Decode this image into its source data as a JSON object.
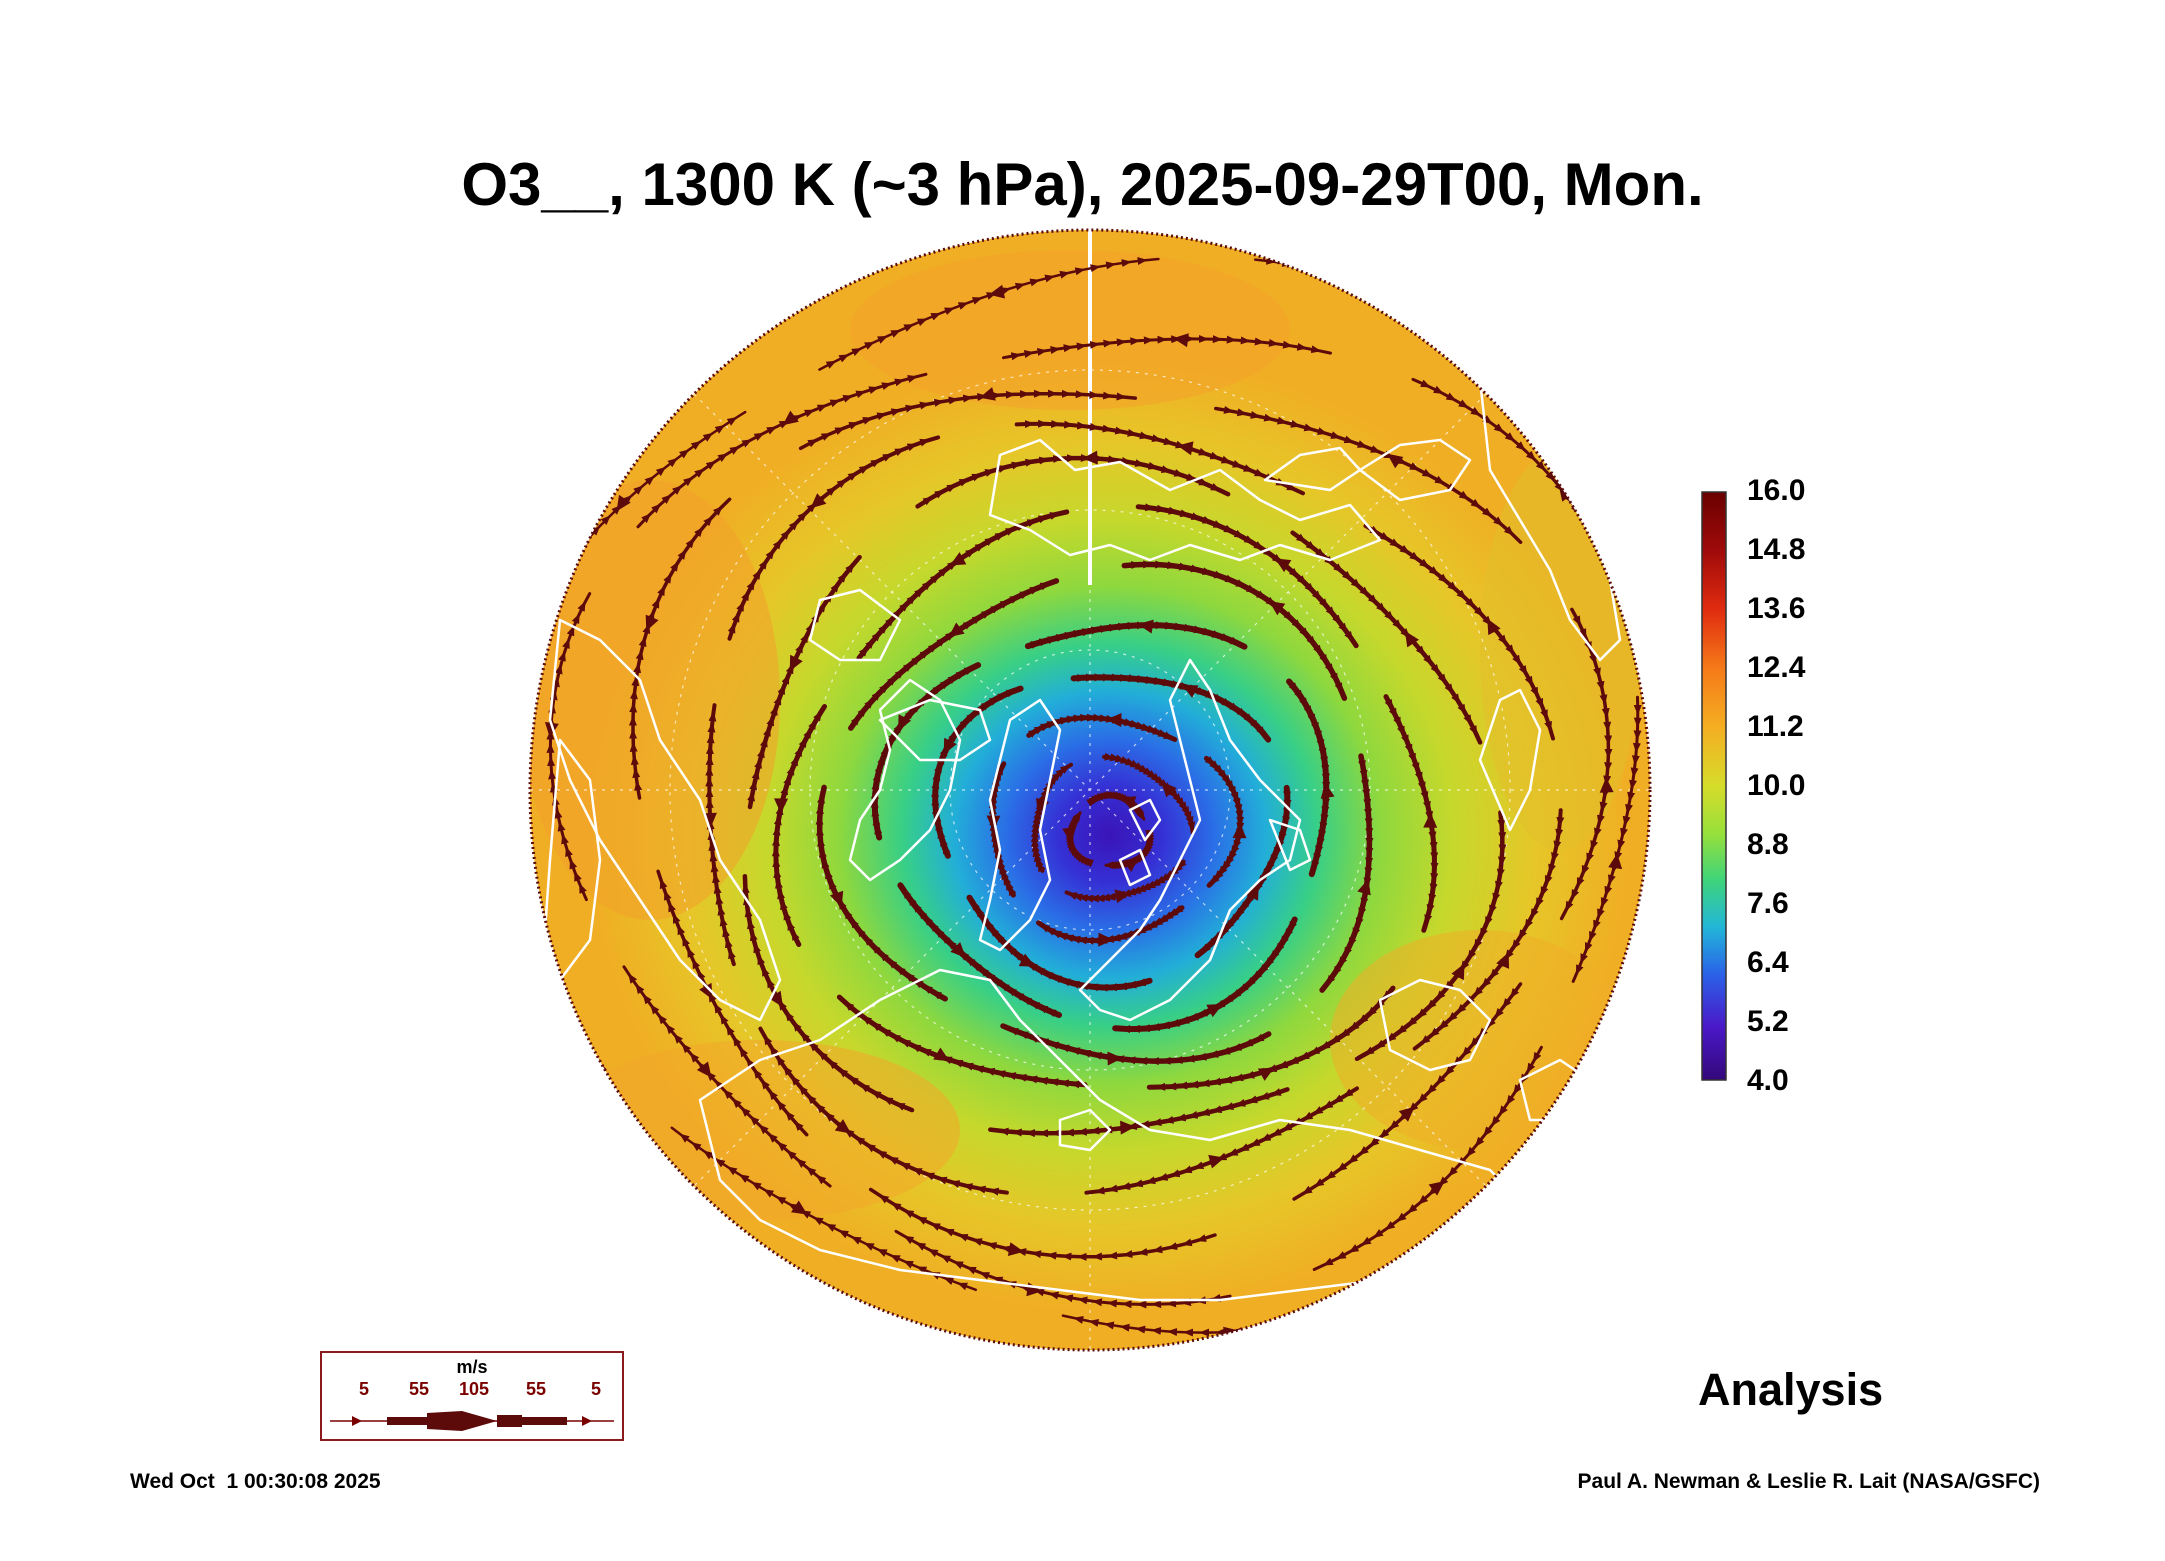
{
  "title": "O3__, 1300 K (~3 hPa), 2025-09-29T00, Mon.",
  "colorbar": {
    "labels": [
      "16.0",
      "14.8",
      "13.6",
      "12.4",
      "11.2",
      "10.0",
      "8.8",
      "7.6",
      "6.4",
      "5.2",
      "4.0"
    ],
    "colors": [
      "#6a0000",
      "#b01010",
      "#e83a10",
      "#f57e1a",
      "#f5b022",
      "#d6dc2a",
      "#98e03a",
      "#3ed47a",
      "#22b6d8",
      "#2a62e8",
      "#4a18c8",
      "#34087a"
    ]
  },
  "wind_legend": {
    "unit": "m/s",
    "values": [
      "5",
      "55",
      "105",
      "55",
      "5"
    ]
  },
  "analysis_label": "Analysis",
  "footer": {
    "timestamp": "Wed Oct  1 00:30:08 2025",
    "credit": "Paul A. Newman & Leslie R. Lait (NASA/GSFC)"
  },
  "colors": {
    "streamline": "#5c0a0a",
    "coastline": "#ffffff",
    "vortex_core": "#3a18c0"
  }
}
